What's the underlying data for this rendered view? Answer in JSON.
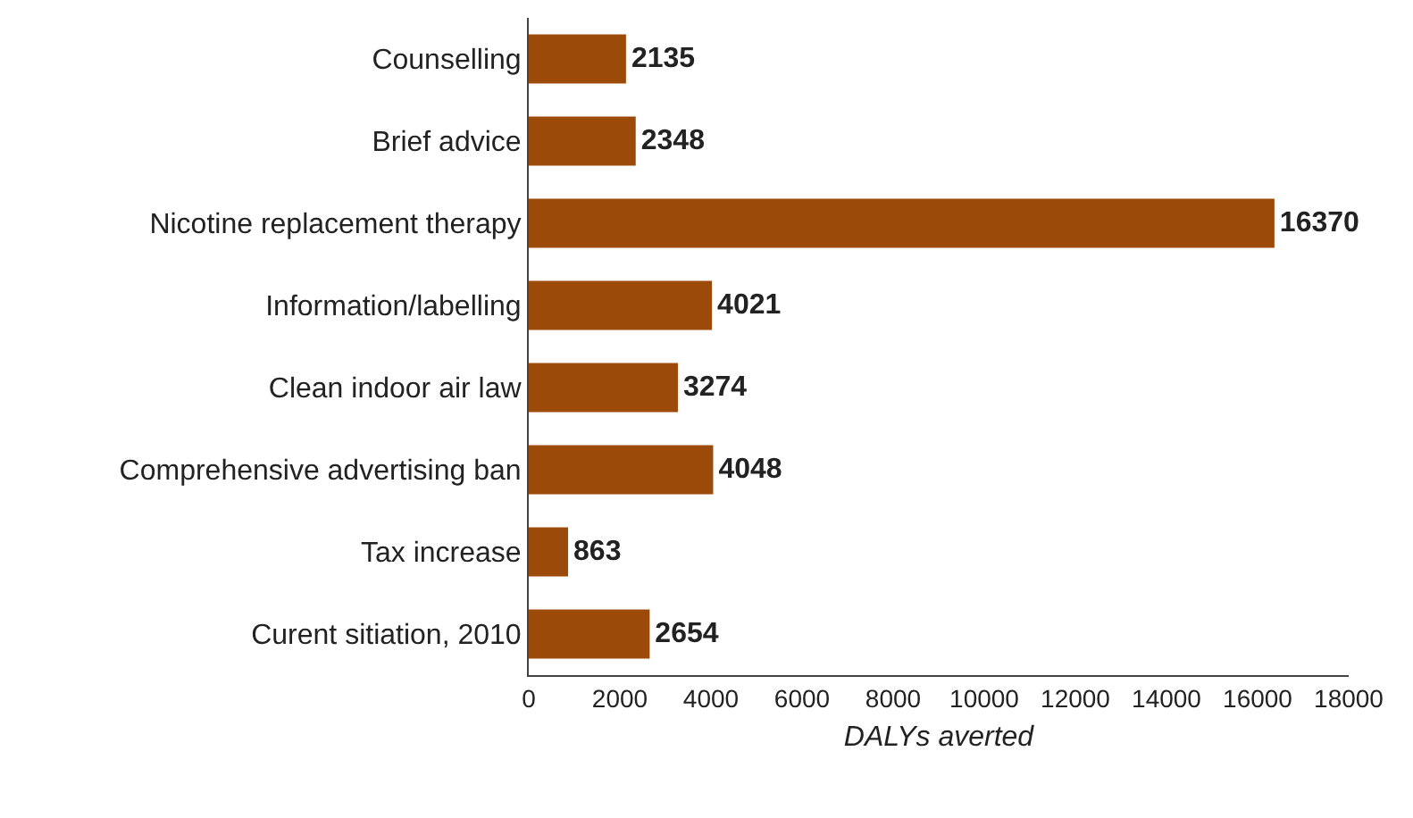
{
  "chart_data": {
    "type": "bar",
    "orientation": "horizontal",
    "xlabel": "DALYs averted",
    "categories": [
      "Counselling",
      "Brief advice",
      "Nicotine replacement therapy",
      "Information/labelling",
      "Clean indoor air law",
      "Comprehensive advertising ban",
      "Tax increase",
      "Curent sitiation, 2010"
    ],
    "values": [
      2135,
      2348,
      16370,
      4021,
      3274,
      4048,
      863,
      2654
    ],
    "color": "#9c4a0a",
    "xlim": [
      0,
      18000
    ],
    "xticks": [
      0,
      2000,
      4000,
      6000,
      8000,
      10000,
      12000,
      14000,
      16000,
      18000
    ],
    "data_labels": true,
    "grid": false
  }
}
